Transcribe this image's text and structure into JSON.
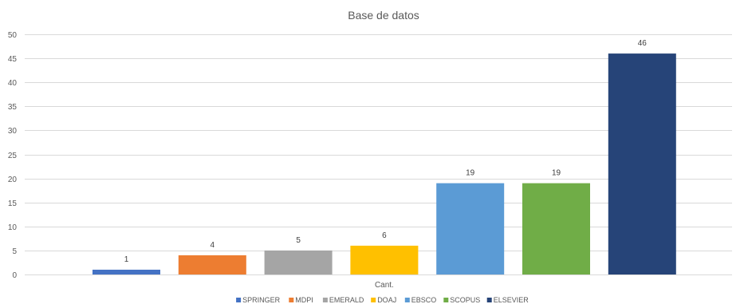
{
  "chart_data": {
    "type": "bar",
    "title": "Base de datos",
    "categories": [
      "Cant."
    ],
    "series": [
      {
        "name": "SPRINGER",
        "values": [
          1
        ],
        "color": "#4472C4"
      },
      {
        "name": "MDPI",
        "values": [
          4
        ],
        "color": "#ED7D31"
      },
      {
        "name": "EMERALD",
        "values": [
          5
        ],
        "color": "#A5A5A5"
      },
      {
        "name": "DOAJ",
        "values": [
          6
        ],
        "color": "#FFC000"
      },
      {
        "name": "EBSCO",
        "values": [
          19
        ],
        "color": "#5B9BD5"
      },
      {
        "name": "SCOPUS",
        "values": [
          19
        ],
        "color": "#70AD47"
      },
      {
        "name": "ELSEVIER",
        "values": [
          46
        ],
        "color": "#264478"
      }
    ],
    "ylim": [
      0,
      50
    ],
    "yticks": [
      0,
      5,
      10,
      15,
      20,
      25,
      30,
      35,
      40,
      45,
      50
    ],
    "grid": true,
    "legend_position": "bottom",
    "data_labels": true
  }
}
